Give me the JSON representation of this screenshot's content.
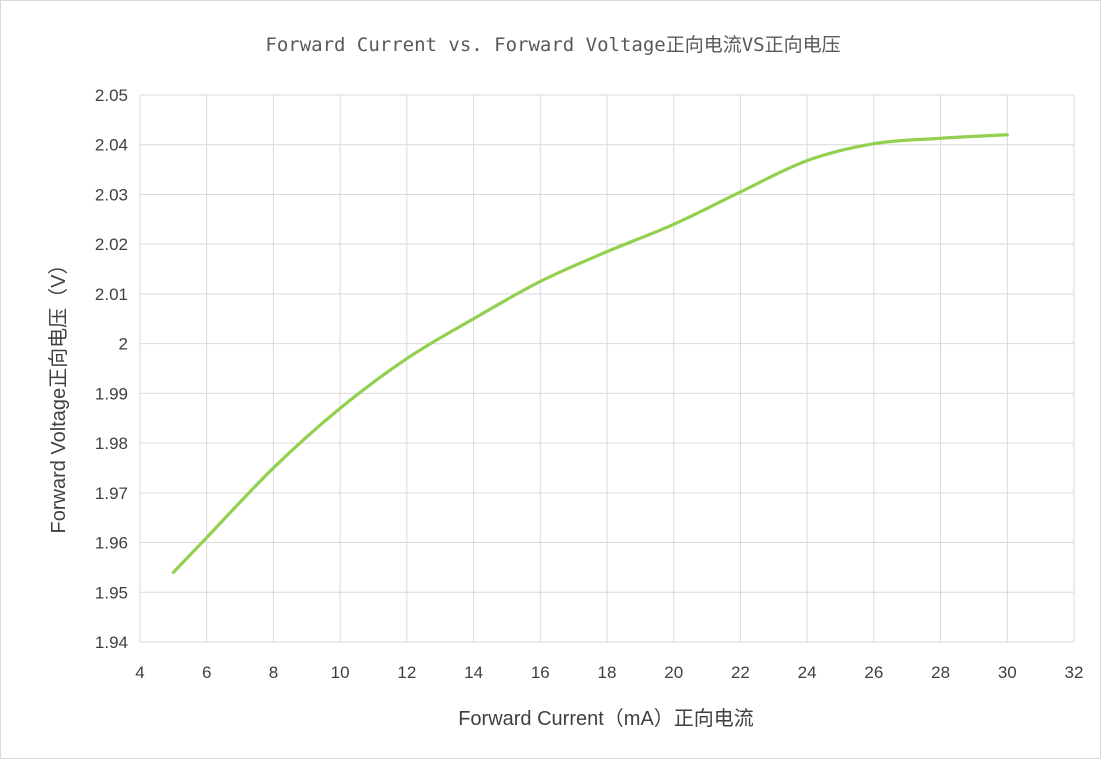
{
  "chart_data": {
    "type": "line",
    "title": "Forward Current vs. Forward Voltage正向电流VS正向电压",
    "xlabel": "Forward Current（mA）正向电流",
    "ylabel": "Forward Voltage正向电压（V）",
    "xlim": [
      4,
      32
    ],
    "ylim": [
      1.94,
      2.05
    ],
    "x_ticks": [
      "4",
      "6",
      "8",
      "10",
      "12",
      "14",
      "16",
      "18",
      "20",
      "22",
      "24",
      "26",
      "28",
      "30",
      "32"
    ],
    "y_ticks": [
      "2.05",
      "2.04",
      "2.03",
      "2.02",
      "2.01",
      "2",
      "1.99",
      "1.98",
      "1.97",
      "1.96",
      "1.95",
      "1.94"
    ],
    "grid": true,
    "legend": "none",
    "series": [
      {
        "color": "#92d050",
        "smooth": true,
        "x": [
          5,
          6,
          8,
          10,
          12,
          14,
          16,
          18,
          20,
          22,
          24,
          26,
          28,
          30
        ],
        "y": [
          1.954,
          1.961,
          1.975,
          1.987,
          1.997,
          2.005,
          2.0125,
          2.0185,
          2.024,
          2.0305,
          2.0368,
          2.0402,
          2.0413,
          2.042
        ]
      }
    ]
  }
}
